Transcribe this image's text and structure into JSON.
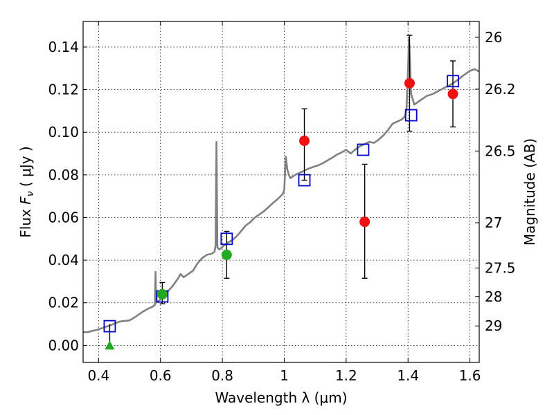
{
  "chart_data": {
    "type": "scatter",
    "title": "",
    "xlabel": "Wavelength  λ (μm)",
    "ylabel": "Flux  F_ν  ( μJy )",
    "ylabel_right": "Magnitude (AB)",
    "xlim": [
      0.35,
      1.63
    ],
    "ylim": [
      -0.008,
      0.152
    ],
    "grid": true,
    "x_ticks": [
      {
        "v": 0.4,
        "label": "0.4"
      },
      {
        "v": 0.6,
        "label": "0.6"
      },
      {
        "v": 0.8,
        "label": "0.8"
      },
      {
        "v": 1.0,
        "label": "1"
      },
      {
        "v": 1.2,
        "label": "1.2"
      },
      {
        "v": 1.4,
        "label": "1.4"
      },
      {
        "v": 1.6,
        "label": "1.6"
      }
    ],
    "y_ticks": [
      {
        "v": 0.0,
        "label": "0.00"
      },
      {
        "v": 0.02,
        "label": "0.02"
      },
      {
        "v": 0.04,
        "label": "0.04"
      },
      {
        "v": 0.06,
        "label": "0.06"
      },
      {
        "v": 0.08,
        "label": "0.08"
      },
      {
        "v": 0.1,
        "label": "0.10"
      },
      {
        "v": 0.12,
        "label": "0.12"
      },
      {
        "v": 0.14,
        "label": "0.14"
      }
    ],
    "mag_ticks": [
      {
        "mag": 26,
        "label": "26"
      },
      {
        "mag": 26.2,
        "label": "26.2"
      },
      {
        "mag": 26.5,
        "label": "26.5"
      },
      {
        "mag": 27,
        "label": "27"
      },
      {
        "mag": 27.5,
        "label": "27.5"
      },
      {
        "mag": 28,
        "label": "28"
      },
      {
        "mag": 29,
        "label": "29"
      }
    ],
    "colors": {
      "sed": "#808080",
      "model": "#0000cc",
      "red": "#ee1111",
      "green": "#22aa22"
    },
    "sed_spectrum": [
      [
        0.35,
        0.0062
      ],
      [
        0.365,
        0.0062
      ],
      [
        0.38,
        0.0068
      ],
      [
        0.395,
        0.0073
      ],
      [
        0.41,
        0.008
      ],
      [
        0.425,
        0.0088
      ],
      [
        0.44,
        0.0095
      ],
      [
        0.455,
        0.0105
      ],
      [
        0.47,
        0.0112
      ],
      [
        0.485,
        0.0115
      ],
      [
        0.5,
        0.0117
      ],
      [
        0.515,
        0.013
      ],
      [
        0.53,
        0.0145
      ],
      [
        0.545,
        0.016
      ],
      [
        0.56,
        0.0172
      ],
      [
        0.575,
        0.0182
      ],
      [
        0.582,
        0.019
      ],
      [
        0.584,
        0.0345
      ],
      [
        0.586,
        0.02
      ],
      [
        0.595,
        0.021
      ],
      [
        0.61,
        0.0228
      ],
      [
        0.625,
        0.0255
      ],
      [
        0.64,
        0.028
      ],
      [
        0.655,
        0.031
      ],
      [
        0.665,
        0.0335
      ],
      [
        0.675,
        0.032
      ],
      [
        0.69,
        0.0335
      ],
      [
        0.705,
        0.035
      ],
      [
        0.72,
        0.0385
      ],
      [
        0.735,
        0.041
      ],
      [
        0.75,
        0.0425
      ],
      [
        0.765,
        0.043
      ],
      [
        0.775,
        0.044
      ],
      [
        0.778,
        0.047
      ],
      [
        0.781,
        0.0955
      ],
      [
        0.784,
        0.046
      ],
      [
        0.79,
        0.045
      ],
      [
        0.8,
        0.0462
      ],
      [
        0.815,
        0.048
      ],
      [
        0.83,
        0.0492
      ],
      [
        0.845,
        0.051
      ],
      [
        0.86,
        0.0535
      ],
      [
        0.875,
        0.0562
      ],
      [
        0.89,
        0.0578
      ],
      [
        0.905,
        0.06
      ],
      [
        0.92,
        0.0615
      ],
      [
        0.935,
        0.063
      ],
      [
        0.95,
        0.065
      ],
      [
        0.965,
        0.067
      ],
      [
        0.98,
        0.0688
      ],
      [
        0.995,
        0.071
      ],
      [
        1.0,
        0.073
      ],
      [
        1.005,
        0.0885
      ],
      [
        1.01,
        0.0825
      ],
      [
        1.015,
        0.08
      ],
      [
        1.02,
        0.0785
      ],
      [
        1.035,
        0.08
      ],
      [
        1.05,
        0.081
      ],
      [
        1.065,
        0.082
      ],
      [
        1.08,
        0.083
      ],
      [
        1.095,
        0.0838
      ],
      [
        1.11,
        0.0845
      ],
      [
        1.125,
        0.0855
      ],
      [
        1.14,
        0.0868
      ],
      [
        1.155,
        0.088
      ],
      [
        1.17,
        0.0895
      ],
      [
        1.185,
        0.0905
      ],
      [
        1.2,
        0.0918
      ],
      [
        1.215,
        0.09
      ],
      [
        1.23,
        0.092
      ],
      [
        1.245,
        0.0935
      ],
      [
        1.26,
        0.0945
      ],
      [
        1.275,
        0.0955
      ],
      [
        1.29,
        0.095
      ],
      [
        1.305,
        0.0965
      ],
      [
        1.32,
        0.0985
      ],
      [
        1.335,
        0.101
      ],
      [
        1.35,
        0.104
      ],
      [
        1.365,
        0.105
      ],
      [
        1.38,
        0.106
      ],
      [
        1.39,
        0.1075
      ],
      [
        1.395,
        0.111
      ],
      [
        1.4,
        0.129
      ],
      [
        1.403,
        0.1445
      ],
      [
        1.406,
        0.134
      ],
      [
        1.41,
        0.118
      ],
      [
        1.42,
        0.113
      ],
      [
        1.44,
        0.115
      ],
      [
        1.46,
        0.117
      ],
      [
        1.48,
        0.118
      ],
      [
        1.5,
        0.1195
      ],
      [
        1.52,
        0.121
      ],
      [
        1.54,
        0.1225
      ],
      [
        1.56,
        0.1245
      ],
      [
        1.58,
        0.1268
      ],
      [
        1.6,
        0.1288
      ],
      [
        1.615,
        0.1296
      ],
      [
        1.63,
        0.1285
      ]
    ],
    "model_points": [
      {
        "x": 0.436,
        "y": 0.009
      },
      {
        "x": 0.606,
        "y": 0.023
      },
      {
        "x": 0.814,
        "y": 0.05
      },
      {
        "x": 1.065,
        "y": 0.0775
      },
      {
        "x": 1.255,
        "y": 0.0918
      },
      {
        "x": 1.41,
        "y": 0.108
      },
      {
        "x": 1.545,
        "y": 0.124
      }
    ],
    "observed_red": [
      {
        "x": 1.065,
        "y": 0.096,
        "ylo": 0.0775,
        "yhi": 0.111
      },
      {
        "x": 1.26,
        "y": 0.058,
        "ylo": 0.0315,
        "yhi": 0.085
      },
      {
        "x": 1.405,
        "y": 0.123,
        "ylo": 0.1005,
        "yhi": 0.1455
      },
      {
        "x": 1.545,
        "y": 0.118,
        "ylo": 0.1025,
        "yhi": 0.1335
      }
    ],
    "observed_green": [
      {
        "x": 0.606,
        "y": 0.024,
        "ylo": 0.0195,
        "yhi": 0.0295
      },
      {
        "x": 0.814,
        "y": 0.0425,
        "ylo": 0.0315,
        "yhi": 0.0535
      }
    ],
    "upper_limit": {
      "x": 0.436,
      "y": 0.0,
      "yhi": 0.01
    }
  }
}
